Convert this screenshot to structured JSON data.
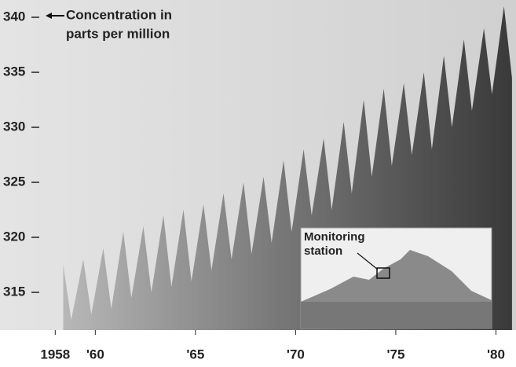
{
  "chart_data": {
    "type": "area",
    "annotations": [
      "Concentration in",
      "parts per million"
    ],
    "inset_labels": [
      "Monitoring",
      "station"
    ],
    "x": [
      1958.4,
      1958.8,
      1959.4,
      1959.8,
      1960.4,
      1960.8,
      1961.4,
      1961.8,
      1962.4,
      1962.8,
      1963.4,
      1963.8,
      1964.4,
      1964.8,
      1965.4,
      1965.8,
      1966.4,
      1966.8,
      1967.4,
      1967.8,
      1968.4,
      1968.8,
      1969.4,
      1969.8,
      1970.4,
      1970.8,
      1971.4,
      1971.8,
      1972.4,
      1972.8,
      1973.4,
      1973.8,
      1974.4,
      1974.8,
      1975.4,
      1975.8,
      1976.4,
      1976.8,
      1977.4,
      1977.8,
      1978.4,
      1978.8,
      1979.4,
      1979.8,
      1980.4,
      1980.8
    ],
    "values": [
      317.5,
      312.5,
      318,
      313,
      319,
      313.5,
      320.5,
      314.5,
      321,
      315,
      322,
      315.5,
      322.5,
      316,
      323,
      317,
      324,
      318,
      325,
      318.5,
      325.5,
      319.5,
      327,
      320.5,
      328,
      322,
      329,
      322.5,
      330.5,
      324,
      332.5,
      325.5,
      333.5,
      326.5,
      334,
      327.5,
      335,
      328,
      336.5,
      330,
      338,
      331.5,
      339,
      333,
      341,
      334.5
    ],
    "color": "#3a3a3a",
    "xlim": [
      1957.4,
      1981
    ],
    "xticks": [
      {
        "value": 1958,
        "label": "1958"
      },
      {
        "value": 1960,
        "label": "'60"
      },
      {
        "value": 1965,
        "label": "'65"
      },
      {
        "value": 1970,
        "label": "'70"
      },
      {
        "value": 1975,
        "label": "'75"
      },
      {
        "value": 1980,
        "label": "'80"
      }
    ],
    "ylim": [
      312,
      341.5
    ],
    "yticks": [
      315,
      320,
      325,
      330,
      335,
      340
    ]
  }
}
